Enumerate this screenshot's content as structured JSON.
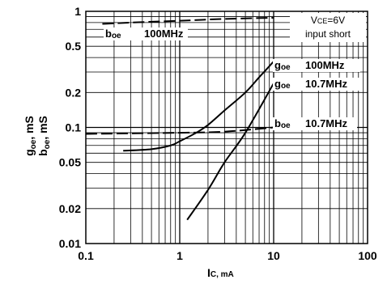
{
  "chart_data": {
    "type": "line",
    "x_scale": "log",
    "y_scale": "log",
    "xlim": [
      0.1,
      100
    ],
    "ylim": [
      0.01,
      1
    ],
    "grid": true,
    "x_ticks": [
      "0.1",
      "1",
      "10",
      "100"
    ],
    "y_ticks": [
      "1",
      "0.5",
      "0.2",
      "0.1",
      "0.05",
      "0.02",
      "0.01"
    ],
    "xlabel_main": "I",
    "xlabel_sub": "C, mA",
    "ylabel_line1": "g",
    "ylabel_line1_sub": "oe",
    "ylabel_line1_unit": ", mS",
    "ylabel_line2": "b",
    "ylabel_line2_sub": "oe",
    "ylabel_line2_unit": ", mS",
    "condition_line1": "V",
    "condition_line1_sub": "CE",
    "condition_line1_rest": "=6V",
    "condition_line2": "input short",
    "series": [
      {
        "name_main": "b",
        "name_sub": "oe",
        "name_freq": "100MHz",
        "style": "dashed",
        "x": [
          0.15,
          0.3,
          1,
          3,
          10
        ],
        "y": [
          0.78,
          0.8,
          0.83,
          0.86,
          0.88
        ]
      },
      {
        "name_main": "g",
        "name_sub": "oe",
        "name_freq": "100MHz",
        "style": "solid",
        "x": [
          0.25,
          0.5,
          0.8,
          1,
          1.5,
          2,
          3,
          5,
          7,
          10
        ],
        "y": [
          0.063,
          0.065,
          0.07,
          0.076,
          0.09,
          0.105,
          0.14,
          0.2,
          0.27,
          0.37
        ]
      },
      {
        "name_main": "g",
        "name_sub": "oe",
        "name_freq": "10.7MHz",
        "style": "solid",
        "x": [
          1.2,
          2,
          3,
          5,
          10
        ],
        "y": [
          0.016,
          0.029,
          0.05,
          0.09,
          0.24
        ]
      },
      {
        "name_main": "b",
        "name_sub": "oe",
        "name_freq": "10.7MHz",
        "style": "dashed",
        "x": [
          0.1,
          1,
          3,
          10
        ],
        "y": [
          0.088,
          0.09,
          0.092,
          0.1
        ]
      }
    ]
  }
}
